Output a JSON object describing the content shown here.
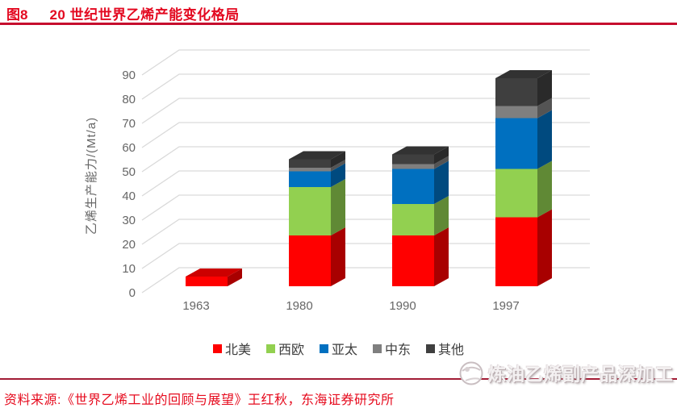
{
  "header": {
    "fig_label": "图8",
    "title": "20 世纪世界乙烯产能变化格局"
  },
  "footer": {
    "source": "资料来源:《世界乙烯工业的回顾与展望》王红秋，东海证券研究所"
  },
  "watermark": {
    "logo": "swirl-ball-icon",
    "text": "炼油乙烯副产品深加工"
  },
  "colors": {
    "report_red": "#e30920",
    "top_rule": "#c60c2d",
    "bottom_rule": "#a21c35",
    "axis_text": "#666666",
    "gridline": "#d9d9d9",
    "legend_text": "#3d3d3d"
  },
  "chart_data": {
    "type": "bar",
    "stacked": true,
    "effect": "3d",
    "title": "",
    "xlabel": "",
    "ylabel": "乙烯生产能力/(Mt/a)",
    "categories": [
      "1963",
      "1980",
      "1990",
      "1997"
    ],
    "series": [
      {
        "name": "北美",
        "color": "#ff0000",
        "values": [
          4,
          21,
          21,
          28.5
        ]
      },
      {
        "name": "西欧",
        "color": "#92d050",
        "values": [
          0,
          20,
          13,
          20
        ]
      },
      {
        "name": "亚太",
        "color": "#0070c0",
        "values": [
          0,
          6.5,
          14.5,
          21
        ]
      },
      {
        "name": "中东",
        "color": "#7f7f7f",
        "values": [
          0,
          1.5,
          2,
          5
        ]
      },
      {
        "name": "其他",
        "color": "#3f3f3f",
        "values": [
          0,
          3.5,
          4,
          11.5
        ]
      }
    ],
    "totals": [
      4,
      52.5,
      54.5,
      86
    ],
    "ylim": [
      0,
      90
    ],
    "ytick_step": 10,
    "yticks": [
      0,
      10,
      20,
      30,
      40,
      50,
      60,
      70,
      80,
      90
    ],
    "grid": true,
    "legend_position": "bottom"
  }
}
